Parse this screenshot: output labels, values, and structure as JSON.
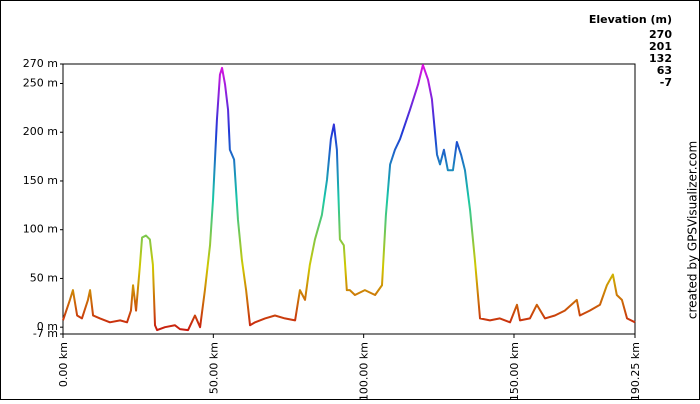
{
  "chart_data": {
    "type": "line",
    "credit": "created by GPSVisualizer.com",
    "legend": {
      "title": "Elevation (m)",
      "items": [
        {
          "value": 270,
          "color": "#e010e0"
        },
        {
          "value": 201,
          "color": "#2038d8"
        },
        {
          "value": 132,
          "color": "#18c8a8"
        },
        {
          "value": 63,
          "color": "#d0c800"
        },
        {
          "value": -7,
          "color": "#c81010"
        }
      ]
    },
    "x": [
      0,
      2.3,
      3.3,
      4.7,
      6.3,
      8.3,
      9,
      10,
      12.3,
      15.6,
      19,
      21.3,
      22.6,
      23.3,
      24.3,
      25.6,
      26.3,
      27.6,
      28.9,
      29.9,
      30.6,
      31.3,
      33.9,
      37.2,
      38.9,
      41.6,
      43.9,
      45.6,
      47.2,
      48.9,
      49.9,
      51.2,
      52.2,
      52.9,
      53.9,
      54.9,
      55.5,
      56.9,
      58.2,
      59.5,
      60.9,
      62.2,
      63.9,
      67.2,
      70.5,
      73.8,
      77.2,
      78.8,
      80.5,
      82.1,
      83.8,
      86.1,
      87.8,
      89.1,
      90.1,
      91.1,
      92.1,
      93.4,
      94.4,
      95.4,
      97.1,
      100.4,
      103.8,
      106.1,
      107.4,
      108.8,
      110.4,
      112.1,
      115.4,
      118.1,
      119.7,
      121.4,
      122.7,
      124.4,
      125.4,
      126.7,
      128,
      129.7,
      131,
      132.4,
      133.7,
      135.4,
      137,
      138.7,
      142,
      145.3,
      148.7,
      151,
      152,
      155.3,
      157.6,
      160.3,
      163.6,
      166.9,
      170.9,
      171.9,
      175.2,
      178.6,
      180.9,
      182.9,
      184.2,
      185.9,
      187.6,
      190.25
    ],
    "values": [
      7,
      28,
      38,
      12,
      9,
      28,
      38,
      12,
      9,
      5,
      7,
      5,
      17,
      43,
      17,
      64,
      92,
      94,
      90,
      64,
      2,
      -3,
      0,
      2,
      -2,
      -3,
      12,
      0,
      38,
      84,
      131,
      213,
      259,
      266,
      249,
      223,
      182,
      172,
      110,
      69,
      38,
      2,
      5,
      9,
      12,
      9,
      7,
      38,
      28,
      64,
      90,
      115,
      151,
      193,
      208,
      182,
      90,
      84,
      38,
      38,
      33,
      38,
      33,
      43,
      115,
      167,
      182,
      193,
      223,
      249,
      269,
      254,
      234,
      177,
      167,
      182,
      161,
      161,
      190,
      177,
      161,
      120,
      69,
      9,
      7,
      9,
      5,
      23,
      7,
      9,
      23,
      9,
      12,
      17,
      28,
      12,
      17,
      23,
      43,
      54,
      33,
      28,
      9,
      5
    ],
    "xlim": [
      0,
      190.25
    ],
    "xticks": [
      {
        "value": 0,
        "label": "0.00 km"
      },
      {
        "value": 50,
        "label": "50.00 km"
      },
      {
        "value": 100,
        "label": "100.00 km"
      },
      {
        "value": 150,
        "label": "150.00 km"
      },
      {
        "value": 190.25,
        "label": "190.25 km"
      }
    ],
    "ylim": [
      -7,
      270
    ],
    "yticks": [
      {
        "value": 270,
        "label": "270 m"
      },
      {
        "value": 250,
        "label": "250 m"
      },
      {
        "value": 200,
        "label": "200 m"
      },
      {
        "value": 150,
        "label": "150 m"
      },
      {
        "value": 100,
        "label": "100 m"
      },
      {
        "value": 50,
        "label": "50 m"
      },
      {
        "value": 0,
        "label": "0 m"
      },
      {
        "value": -7,
        "label": "-7 m"
      }
    ]
  }
}
